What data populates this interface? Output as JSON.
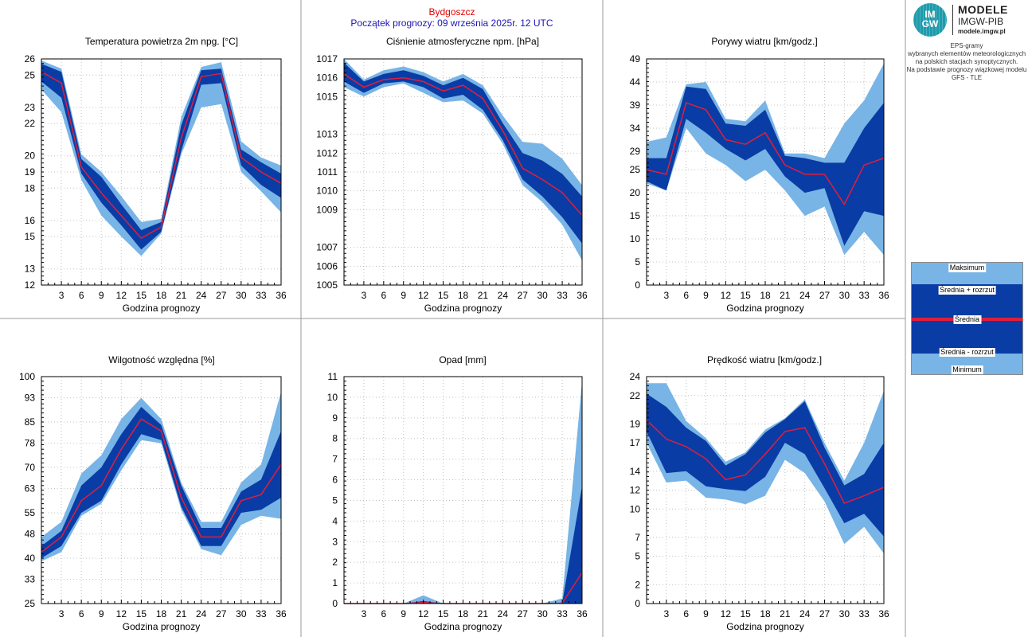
{
  "header": {
    "city": "Bydgoszcz",
    "start": "Początek prognozy: 09 września 2025r. 12 UTC"
  },
  "sidebar": {
    "logo": {
      "circle_text_1": "IM",
      "circle_text_2": "GW",
      "line1": "MODELE",
      "line2": "IMGW-PIB",
      "line3": "modele.imgw.pl"
    },
    "description": [
      "EPS-gramy",
      "wybranych elementów meteorologicznych",
      "na polskich stacjach  synoptycznych.",
      "",
      "Na podstawie prognozy wiązkowej modelu",
      "GFS - TLE"
    ],
    "legend": {
      "max": "Maksimum",
      "mean_plus": "Średnia + rozrzut",
      "mean": "Średnia",
      "mean_minus": "Średnia - rozrzut",
      "min": "Minimum"
    }
  },
  "colors": {
    "minmax_band": "#78b4e6",
    "spread_band": "#0a3ca5",
    "mean_line": "#e01e3c",
    "grid": "#c0c0c0",
    "title_city": "#e60000",
    "title_start": "#1a14b4"
  },
  "chart_data": [
    {
      "type": "area",
      "title": "Temperatura powietrza 2m npg. [°C]",
      "xlabel": "Godzina prognozy",
      "ylabel": "",
      "xlim": [
        0,
        36
      ],
      "ylim": [
        12,
        26
      ],
      "yticks": [
        12,
        13,
        15,
        16,
        18,
        19,
        20,
        22,
        23,
        25,
        26
      ],
      "xticks": [
        3,
        6,
        9,
        12,
        15,
        18,
        21,
        24,
        27,
        30,
        33,
        36
      ],
      "grid": true,
      "x": [
        0,
        3,
        6,
        9,
        12,
        15,
        18,
        21,
        24,
        27,
        30,
        33,
        36
      ],
      "series": [
        {
          "name": "Maksimum",
          "values": [
            25.9,
            25.4,
            20.1,
            19.0,
            17.5,
            15.9,
            16.1,
            22.4,
            25.5,
            25.8,
            20.9,
            19.9,
            19.4
          ]
        },
        {
          "name": "Średnia + rozrzut",
          "values": [
            25.7,
            25.2,
            19.8,
            18.7,
            17.0,
            15.4,
            15.9,
            21.9,
            25.3,
            25.4,
            20.4,
            19.6,
            18.9
          ]
        },
        {
          "name": "Średnia",
          "values": [
            25.2,
            24.5,
            19.3,
            17.7,
            16.3,
            14.9,
            15.6,
            21.1,
            24.9,
            25.1,
            19.9,
            19.0,
            18.3
          ]
        },
        {
          "name": "Średnia - rozrzut",
          "values": [
            24.6,
            23.6,
            18.9,
            17.1,
            15.7,
            14.2,
            15.3,
            20.3,
            24.4,
            24.5,
            19.4,
            18.2,
            17.4
          ]
        },
        {
          "name": "Minimum",
          "values": [
            24.1,
            22.7,
            18.5,
            16.3,
            15.0,
            13.8,
            15.2,
            20.1,
            23.0,
            23.2,
            19.0,
            17.8,
            16.5
          ]
        }
      ]
    },
    {
      "type": "area",
      "title": "Ciśnienie atmosferyczne npm. [hPa]",
      "xlabel": "Godzina prognozy",
      "ylabel": "",
      "xlim": [
        0,
        36
      ],
      "ylim": [
        1005,
        1017
      ],
      "yticks": [
        1005,
        1006,
        1007,
        1009,
        1010,
        1011,
        1012,
        1013,
        1015,
        1016,
        1017
      ],
      "xticks": [
        3,
        6,
        9,
        12,
        15,
        18,
        21,
        24,
        27,
        30,
        33,
        36
      ],
      "grid": true,
      "x": [
        0,
        3,
        6,
        9,
        12,
        15,
        18,
        21,
        24,
        27,
        30,
        33,
        36
      ],
      "series": [
        {
          "name": "Maksimum",
          "values": [
            1017.0,
            1015.9,
            1016.4,
            1016.6,
            1016.3,
            1015.8,
            1016.2,
            1015.6,
            1014.0,
            1012.6,
            1012.5,
            1011.7,
            1010.3
          ]
        },
        {
          "name": "Średnia + rozrzut",
          "values": [
            1016.8,
            1015.8,
            1016.2,
            1016.4,
            1016.1,
            1015.6,
            1016.0,
            1015.4,
            1013.6,
            1012.0,
            1011.6,
            1010.9,
            1009.7
          ]
        },
        {
          "name": "Średnia",
          "values": [
            1016.2,
            1015.5,
            1015.9,
            1016.0,
            1015.8,
            1015.3,
            1015.6,
            1014.9,
            1013.2,
            1011.2,
            1010.6,
            1009.9,
            1008.7
          ]
        },
        {
          "name": "Średnia - rozrzut",
          "values": [
            1015.8,
            1015.2,
            1015.7,
            1015.8,
            1015.5,
            1014.9,
            1015.1,
            1014.3,
            1012.7,
            1010.6,
            1009.7,
            1008.6,
            1007.2
          ]
        },
        {
          "name": "Minimum",
          "values": [
            1015.5,
            1015.0,
            1015.5,
            1015.7,
            1015.2,
            1014.7,
            1014.8,
            1014.1,
            1012.5,
            1010.3,
            1009.4,
            1008.2,
            1006.3
          ]
        }
      ]
    },
    {
      "type": "area",
      "title": "Porywy wiatru [km/godz.]",
      "xlabel": "Godzina prognozy",
      "ylabel": "",
      "xlim": [
        0,
        36
      ],
      "ylim": [
        0,
        49
      ],
      "yticks": [
        0,
        5,
        10,
        15,
        20,
        25,
        29,
        34,
        39,
        44,
        49
      ],
      "xticks": [
        3,
        6,
        9,
        12,
        15,
        18,
        21,
        24,
        27,
        30,
        33,
        36
      ],
      "grid": true,
      "x": [
        0,
        3,
        6,
        9,
        12,
        15,
        18,
        21,
        24,
        27,
        30,
        33,
        36
      ],
      "series": [
        {
          "name": "Maksimum",
          "values": [
            31,
            32,
            43.5,
            44,
            36,
            35.5,
            40,
            28.5,
            28.5,
            27.5,
            35,
            40,
            48
          ]
        },
        {
          "name": "Średnia + rozrzut",
          "values": [
            27.5,
            27.5,
            43,
            42.5,
            35,
            34.5,
            38,
            28,
            27.5,
            26.5,
            26.5,
            34,
            39.5
          ]
        },
        {
          "name": "Średnia",
          "values": [
            25,
            24,
            39.5,
            38,
            31.5,
            30.5,
            33,
            26,
            24,
            24,
            17.5,
            26,
            27.5
          ]
        },
        {
          "name": "Średnia - rozrzut",
          "values": [
            22.5,
            20.5,
            36,
            33,
            29.5,
            27,
            29.5,
            23.5,
            20,
            21,
            8.5,
            16,
            15
          ]
        },
        {
          "name": "Minimum",
          "values": [
            22,
            20.5,
            34,
            28.5,
            26,
            22.5,
            25,
            20.5,
            15,
            17,
            6.5,
            11.5,
            6.5
          ]
        }
      ]
    },
    {
      "type": "area",
      "title": "Wilgotność względna [%]",
      "xlabel": "Godzina prognozy",
      "ylabel": "",
      "xlim": [
        0,
        36
      ],
      "ylim": [
        25,
        100
      ],
      "yticks": [
        25,
        33,
        40,
        48,
        55,
        63,
        70,
        78,
        85,
        93,
        100
      ],
      "xticks": [
        3,
        6,
        9,
        12,
        15,
        18,
        21,
        24,
        27,
        30,
        33,
        36
      ],
      "grid": true,
      "x": [
        0,
        3,
        6,
        9,
        12,
        15,
        18,
        21,
        24,
        27,
        30,
        33,
        36
      ],
      "series": [
        {
          "name": "Maksimum",
          "values": [
            47,
            52,
            68,
            74,
            86,
            93,
            86,
            65,
            52,
            52,
            65,
            71,
            95
          ]
        },
        {
          "name": "Średnia + rozrzut",
          "values": [
            44,
            49,
            64,
            70,
            81,
            90,
            84,
            64,
            50,
            50,
            62,
            66,
            82
          ]
        },
        {
          "name": "Średnia",
          "values": [
            42,
            47,
            59,
            64,
            76,
            86,
            82,
            60,
            47,
            47,
            59,
            61,
            71
          ]
        },
        {
          "name": "Średnia - rozrzut",
          "values": [
            40,
            44,
            55,
            59,
            71,
            81,
            79,
            57,
            44,
            44,
            55,
            56,
            60
          ]
        },
        {
          "name": "Minimum",
          "values": [
            39,
            42,
            54,
            58,
            69,
            79,
            78,
            56,
            43,
            41,
            51,
            54,
            53
          ]
        }
      ]
    },
    {
      "type": "area",
      "title": "Opad [mm]",
      "xlabel": "Godzina prognozy",
      "ylabel": "",
      "xlim": [
        0,
        36
      ],
      "ylim": [
        0,
        11
      ],
      "yticks": [
        0,
        1,
        2,
        3,
        4,
        5,
        6,
        7,
        8,
        9,
        10,
        11
      ],
      "xticks": [
        3,
        6,
        9,
        12,
        15,
        18,
        21,
        24,
        27,
        30,
        33,
        36
      ],
      "grid": true,
      "x": [
        0,
        3,
        6,
        9,
        12,
        15,
        18,
        21,
        24,
        27,
        30,
        33,
        36
      ],
      "series": [
        {
          "name": "Maksimum",
          "values": [
            0,
            0,
            0,
            0,
            0.4,
            0,
            0,
            0,
            0,
            0,
            0,
            0.25,
            10.8
          ]
        },
        {
          "name": "Średnia + rozrzut",
          "values": [
            0,
            0,
            0,
            0,
            0.12,
            0,
            0,
            0,
            0,
            0,
            0,
            0.05,
            5.7
          ]
        },
        {
          "name": "Średnia",
          "values": [
            0,
            0,
            0,
            0,
            0.05,
            0,
            0,
            0,
            0,
            0,
            0,
            0.02,
            1.5
          ]
        },
        {
          "name": "Średnia - rozrzut",
          "values": [
            0,
            0,
            0,
            0,
            0,
            0,
            0,
            0,
            0,
            0,
            0,
            0,
            0
          ]
        },
        {
          "name": "Minimum",
          "values": [
            0,
            0,
            0,
            0,
            0,
            0,
            0,
            0,
            0,
            0,
            0,
            0,
            0
          ]
        }
      ]
    },
    {
      "type": "area",
      "title": "Prędkość wiatru [km/godz.]",
      "xlabel": "Godzina prognozy",
      "ylabel": "",
      "xlim": [
        0,
        36
      ],
      "ylim": [
        0,
        24
      ],
      "yticks": [
        0,
        2,
        5,
        7,
        10,
        12,
        14,
        17,
        19,
        22,
        24
      ],
      "xticks": [
        3,
        6,
        9,
        12,
        15,
        18,
        21,
        24,
        27,
        30,
        33,
        36
      ],
      "grid": true,
      "x": [
        0,
        3,
        6,
        9,
        12,
        15,
        18,
        21,
        24,
        27,
        30,
        33,
        36
      ],
      "series": [
        {
          "name": "Maksimum",
          "values": [
            23.3,
            23.3,
            19.3,
            17.5,
            15.0,
            16.0,
            18.4,
            19.6,
            21.6,
            17.0,
            13.0,
            17.0,
            22.5
          ]
        },
        {
          "name": "Średnia + rozrzut",
          "values": [
            22.2,
            20.8,
            18.6,
            17.2,
            14.6,
            15.8,
            18.1,
            19.5,
            21.4,
            16.5,
            12.5,
            13.7,
            17.0
          ]
        },
        {
          "name": "Średnia",
          "values": [
            19.4,
            17.4,
            16.6,
            15.3,
            13.1,
            13.6,
            15.8,
            18.2,
            18.6,
            14.8,
            10.6,
            11.4,
            12.3
          ]
        },
        {
          "name": "Średnia - rozrzut",
          "values": [
            18.2,
            13.8,
            14.0,
            12.4,
            12.1,
            11.9,
            13.4,
            17.0,
            15.8,
            12.2,
            8.5,
            9.5,
            7.1
          ]
        },
        {
          "name": "Minimum",
          "values": [
            17.0,
            12.8,
            13.0,
            11.2,
            11.0,
            10.5,
            11.4,
            15.2,
            13.8,
            10.8,
            6.3,
            8.1,
            5.3
          ]
        }
      ]
    }
  ]
}
